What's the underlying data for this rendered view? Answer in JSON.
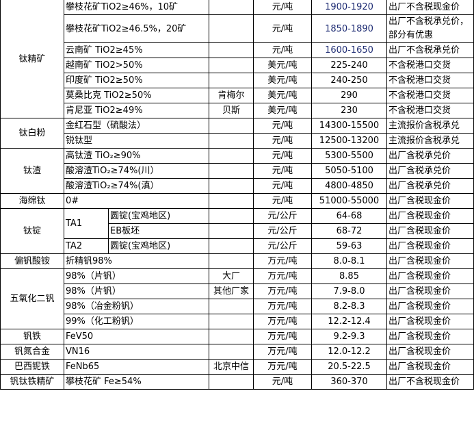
{
  "groups": [
    {
      "category": "钛精矿",
      "rows": [
        {
          "product": "攀枝花矿TiO2≥46%，10矿",
          "maker": "",
          "unit": "元/吨",
          "price": "1900-1920",
          "note": "出厂不含税现金价"
        },
        {
          "product": "攀枝花矿TiO2≥46.5%，20矿",
          "maker": "",
          "unit": "元/吨",
          "price": "1850-1890",
          "note": "出厂不含税承兑价，部分有优惠"
        },
        {
          "product": "云南矿 TiO2≥45%",
          "maker": "",
          "unit": "元/吨",
          "price": "1600-1650",
          "note": "出厂不含税承兑价"
        },
        {
          "product": "越南矿 TiO2>50%",
          "maker": "",
          "unit": "美元/吨",
          "price": "225-240",
          "note": "不含税港口交货"
        },
        {
          "product": "印度矿 TiO2≥50%",
          "maker": "",
          "unit": "美元/吨",
          "price": "240-250",
          "note": "不含税港口交货"
        },
        {
          "product": "莫桑比克 TiO2≥50%",
          "maker": "肯梅尔",
          "unit": "美元/吨",
          "price": "290",
          "note": "不含税港口交货"
        },
        {
          "product": "肯尼亚 TiO2≥49%",
          "maker": "贝斯",
          "unit": "美元/吨",
          "price": "230",
          "note": "不含税港口交货"
        }
      ]
    },
    {
      "category": "钛白粉",
      "rows": [
        {
          "product": "金红石型（硫酸法）",
          "maker": "",
          "unit": "元/吨",
          "price": "14300-15500",
          "note": "主流报价含税承兑"
        },
        {
          "product": "锐钛型",
          "maker": "",
          "unit": "元/吨",
          "price": "12500-13200",
          "note": "主流报价含税承兑"
        }
      ]
    },
    {
      "category": "钛渣",
      "rows": [
        {
          "product": "高钛渣 TiO₂≥90%",
          "maker": "",
          "unit": "元/吨",
          "price": "5300-5500",
          "note": "出厂含税承兑价"
        },
        {
          "product": "酸溶渣TiO₂≥74%(川）",
          "maker": "",
          "unit": "元/吨",
          "price": "5050-5100",
          "note": "出厂含税承兑价"
        },
        {
          "product": "酸溶渣TiO₂≥74%(滇）",
          "maker": "",
          "unit": "元/吨",
          "price": "4800-4850",
          "note": "出厂含税承兑价"
        }
      ]
    },
    {
      "category": "海绵钛",
      "rows": [
        {
          "product": "0#",
          "maker": "",
          "unit": "元/吨",
          "price": "51000-55000",
          "note": "出厂含税现金价"
        }
      ]
    },
    {
      "category": "钛锭",
      "rows": [
        {
          "grade": "TA1",
          "spec": "圆锭(宝鸡地区)",
          "maker": "",
          "unit": "元/公斤",
          "price": "64-68",
          "note": "出厂含税现金价"
        },
        {
          "spec": "EB板坯",
          "maker": "",
          "unit": "元/公斤",
          "price": "68-72",
          "note": "出厂含税现金价"
        },
        {
          "grade": "TA2",
          "spec": "圆锭(宝鸡地区)",
          "maker": "",
          "unit": "元/公斤",
          "price": "59-63",
          "note": "出厂含税现金价"
        }
      ]
    },
    {
      "category": "偏钒酸铵",
      "rows": [
        {
          "product": "折精钒98%",
          "maker": "",
          "unit": "万元/吨",
          "price": "8.0-8.1",
          "note": "出厂含税现金价"
        }
      ]
    },
    {
      "category": "五氧化二钒",
      "rows": [
        {
          "product": "98%（片钒）",
          "maker": "大厂",
          "unit": "万元/吨",
          "price": "8.85",
          "note": "出厂含税现金价"
        },
        {
          "product": "98%（片钒）",
          "maker": "其他厂家",
          "unit": "万元/吨",
          "price": "7.9-8.0",
          "note": "出厂含税现金价"
        },
        {
          "product": "98%（冶金粉钒）",
          "maker": "",
          "unit": "万元/吨",
          "price": "8.2-8.3",
          "note": "出厂含税现金价"
        },
        {
          "product": "99%（化工粉钒）",
          "maker": "",
          "unit": "万元/吨",
          "price": "12.2-12.4",
          "note": "出厂含税现金价"
        }
      ]
    },
    {
      "category": "钒铁",
      "rows": [
        {
          "product": "FeV50",
          "maker": "",
          "unit": "万元/吨",
          "price": "9.2-9.3",
          "note": "出厂含税现金价"
        }
      ]
    },
    {
      "category": "钒氮合金",
      "rows": [
        {
          "product": "VN16",
          "maker": "",
          "unit": "万元/吨",
          "price": "12.0-12.2",
          "note": "出厂含税现金价"
        }
      ]
    },
    {
      "category": "巴西铌铁",
      "rows": [
        {
          "product": "FeNb65",
          "maker": "北京中信",
          "unit": "万元/吨",
          "price": "20.5-22.5",
          "note": "出厂含税现金价"
        }
      ]
    },
    {
      "category": "钒钛铁精矿",
      "rows": [
        {
          "product": "攀枝花矿 Fe≥54%",
          "maker": "",
          "unit": "元/吨",
          "price": "360-370",
          "note": "出厂不含税现金价"
        }
      ]
    }
  ]
}
